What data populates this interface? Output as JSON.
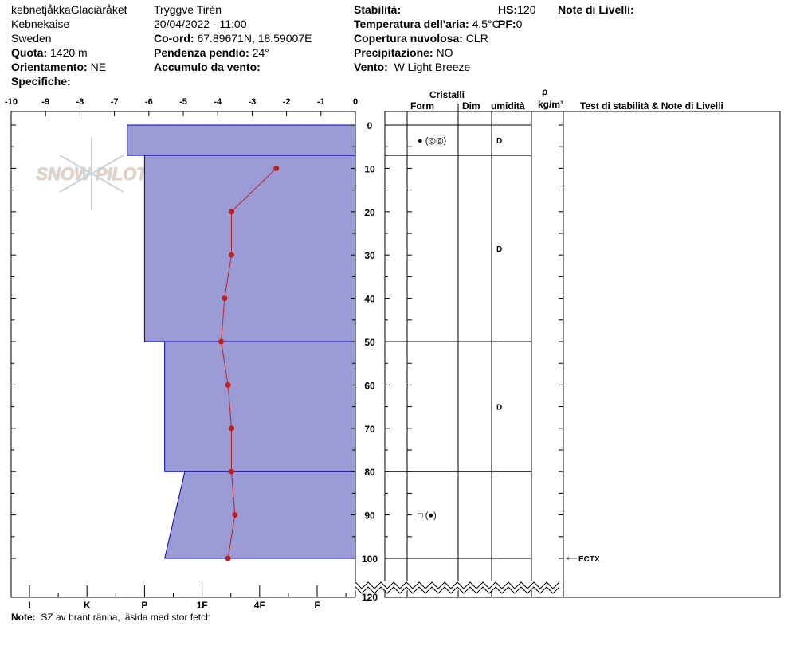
{
  "header": {
    "location": "kebnetjåkkaGlaciäråket",
    "area": "Kebnekaise",
    "country": "Sweden",
    "quota_label": "Quota:",
    "quota": "1420 m",
    "orient_label": "Orientamento:",
    "orient": "NE",
    "spec_label": "Specifiche:",
    "observer": "Tryggve  Tirén",
    "datetime": "20/04/2022 - 11:00",
    "coord_label": "Co-ord:",
    "coord": "67.89671N, 18.59007E",
    "slope_label": "Pendenza pendio:",
    "slope": "24°",
    "wind_load_label": "Accumulo da vento:",
    "stab_label": "Stabilità:",
    "air_label": "Temperatura dell'aria:",
    "air": "4.5°C",
    "cloud_label": "Copertura nuvolosa:",
    "cloud": "CLR",
    "precip_label": "Precipitazione:",
    "precip": "NO",
    "wind_label": "Vento:",
    "wind": "W Light Breeze",
    "hs_label": "HS:",
    "hs": "120",
    "pf_label": "PF:",
    "pf": "0",
    "notes_label": "Note di Livelli:"
  },
  "table_header": {
    "crystals": "Cristalli",
    "form": "Form",
    "dim": "Dim",
    "moisture": "umidità",
    "rho": "ρ",
    "density_unit": "kg/m³",
    "tests": "Test di stabilità & Note di Livelli"
  },
  "footer": {
    "note_label": "Note:",
    "note": "SZ av brant ränna, läsida med stor fetch"
  },
  "watermark": "SNOW PILOT",
  "colors": {
    "layer_fill": "#9b9bd5",
    "layer_edge": "#0000c0",
    "temp": "#c02020"
  },
  "chart_data": {
    "type": "line",
    "temp_axis": {
      "ticks": [
        "-10",
        "-9",
        "-8",
        "-7",
        "-6",
        "-5",
        "-4",
        "-3",
        "-2",
        "-1",
        "0"
      ],
      "range": [
        -10,
        0
      ]
    },
    "depth_axis": {
      "ticks": [
        "0",
        "10",
        "20",
        "30",
        "40",
        "50",
        "60",
        "70",
        "80",
        "90",
        "100",
        "120"
      ],
      "range": [
        0,
        120
      ]
    },
    "hardness_axis": {
      "ticks": [
        "I",
        "K",
        "P",
        "1F",
        "4F",
        "F"
      ]
    },
    "temperature": {
      "depth": [
        10,
        20,
        30,
        40,
        50,
        60,
        70,
        80,
        90,
        100
      ],
      "temp": [
        -2.3,
        -3.6,
        -3.6,
        -3.8,
        -3.9,
        -3.7,
        -3.6,
        -3.6,
        -3.5,
        -3.7
      ]
    },
    "layers": [
      {
        "top": 0,
        "bottom": 7,
        "hardness_top": 4.3,
        "hardness_bottom": 4.3,
        "form": "● (◎◎)",
        "moisture": "D"
      },
      {
        "top": 7,
        "bottom": 50,
        "hardness_top": 4.0,
        "hardness_bottom": 4.0,
        "form": "",
        "moisture": "D"
      },
      {
        "top": 50,
        "bottom": 80,
        "hardness_top": 3.65,
        "hardness_bottom": 3.65,
        "form": "",
        "moisture": "D"
      },
      {
        "top": 80,
        "bottom": 100,
        "hardness_top": 3.3,
        "hardness_bottom": 3.65,
        "form": "□ (●)",
        "moisture": ""
      }
    ],
    "tests": [
      {
        "depth": 100,
        "label": "ECTX"
      }
    ]
  }
}
